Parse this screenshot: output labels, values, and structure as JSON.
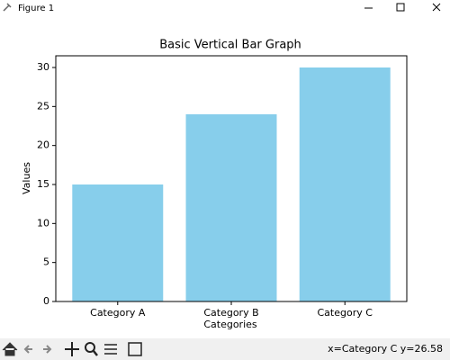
{
  "window": {
    "title": "Figure 1",
    "status": "x=Category C y=26.58"
  },
  "chart_data": {
    "type": "bar",
    "title": "Basic Vertical Bar Graph",
    "x_label": "Categories",
    "y_label": "Values",
    "categories": [
      "Category A",
      "Category B",
      "Category C"
    ],
    "values": [
      15,
      24,
      30
    ],
    "color": "#87ceeb",
    "ylim": [
      0,
      31.5
    ],
    "yticks": [
      0,
      5,
      10,
      15,
      20,
      25,
      30
    ]
  }
}
